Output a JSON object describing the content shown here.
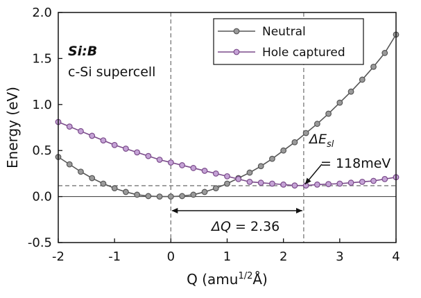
{
  "chart_data": {
    "type": "line",
    "xlabel": "Q (amu",
    "xlabel_sup": "1/2",
    "xlabel_end": "Å)",
    "ylabel": "Energy (eV)",
    "xlim": [
      -2,
      4
    ],
    "ylim": [
      -0.5,
      2.0
    ],
    "xticks": [
      -2,
      -1,
      0,
      1,
      2,
      3,
      4
    ],
    "xtick_labels": [
      "-2",
      "-1",
      "0",
      "1",
      "2",
      "3",
      "4"
    ],
    "yticks": [
      -0.5,
      0.0,
      0.5,
      1.0,
      1.5,
      2.0
    ],
    "ytick_labels": [
      "-0.5",
      "0.0",
      "0.5",
      "1.0",
      "1.5",
      "2.0"
    ],
    "legend_position": "top-right",
    "grid": false,
    "x": [
      -2.0,
      -1.8,
      -1.6,
      -1.4,
      -1.2,
      -1.0,
      -0.8,
      -0.6,
      -0.4,
      -0.2,
      0.0,
      0.2,
      0.4,
      0.6,
      0.8,
      1.0,
      1.2,
      1.4,
      1.6,
      1.8,
      2.0,
      2.2,
      2.4,
      2.6,
      2.8,
      3.0,
      3.2,
      3.4,
      3.6,
      3.8,
      4.0
    ],
    "series": [
      {
        "name": "Neutral",
        "color": "#555555",
        "marker_fill": "#9a9a9a",
        "values": [
          0.43,
          0.35,
          0.27,
          0.2,
          0.14,
          0.09,
          0.05,
          0.02,
          0.005,
          0.0,
          0.0,
          0.005,
          0.02,
          0.05,
          0.09,
          0.14,
          0.2,
          0.26,
          0.33,
          0.41,
          0.5,
          0.59,
          0.69,
          0.79,
          0.9,
          1.02,
          1.14,
          1.27,
          1.41,
          1.56,
          1.76
        ]
      },
      {
        "name": "Hole captured",
        "color": "#7a4a8a",
        "marker_fill": "#c5a3d6",
        "values": [
          0.81,
          0.76,
          0.71,
          0.66,
          0.61,
          0.56,
          0.52,
          0.48,
          0.44,
          0.4,
          0.37,
          0.34,
          0.31,
          0.28,
          0.25,
          0.22,
          0.19,
          0.16,
          0.15,
          0.14,
          0.13,
          0.12,
          0.12,
          0.13,
          0.135,
          0.14,
          0.15,
          0.16,
          0.17,
          0.19,
          0.21
        ]
      }
    ],
    "reference_lines": {
      "vertical_x": [
        0.0,
        2.36
      ],
      "horizontal_y": [
        0.118
      ],
      "zero_line_y": 0.0
    },
    "annotations": {
      "label1": "Si:B",
      "label2": "c-Si supercell",
      "delta_e_prefix": "ΔE",
      "delta_e_sub": "sl",
      "delta_e_value": "= 118meV",
      "delta_q_prefix": "ΔQ",
      "delta_q_value": " = 2.36",
      "delta_q_from": 0.0,
      "delta_q_to": 2.36,
      "arrow_target_x": 2.36,
      "arrow_target_y": 0.118
    }
  }
}
